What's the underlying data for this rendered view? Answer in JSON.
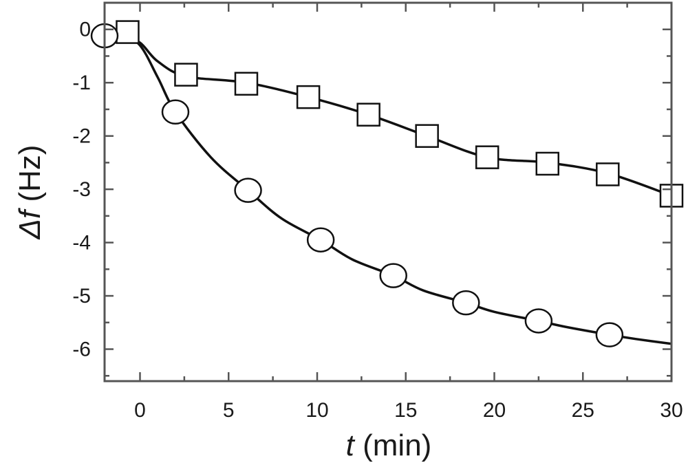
{
  "chart_data": {
    "type": "line",
    "x_axis": {
      "label_symbol": "t",
      "label_unit": "(min)",
      "range": [
        -2,
        30
      ],
      "ticks": [
        0,
        5,
        10,
        15,
        20,
        25,
        30
      ],
      "tick_labels": [
        "0",
        "5",
        "10",
        "15",
        "20",
        "25",
        "30"
      ]
    },
    "y_axis": {
      "label_symbol": "Δf",
      "label_unit": "(Hz)",
      "range": [
        -6.6,
        0.5
      ],
      "ticks": [
        0,
        -1,
        -2,
        -3,
        -4,
        -5,
        -6
      ],
      "tick_labels": [
        "0",
        "-1",
        "-2",
        "-3",
        "-4",
        "-5",
        "-6"
      ]
    },
    "grid": false,
    "legend": "none",
    "series": [
      {
        "marker": "square",
        "x": [
          -0.7,
          2.6,
          6.0,
          9.5,
          12.9,
          16.2,
          19.6,
          23.0,
          26.4,
          30.0
        ],
        "y": [
          -0.05,
          -0.85,
          -1.02,
          -1.27,
          -1.6,
          -2.0,
          -2.4,
          -2.52,
          -2.72,
          -3.12
        ],
        "curve_x": [
          -2,
          -1,
          0,
          1,
          2.6,
          6.0,
          9.5,
          12.9,
          16.2,
          19.6,
          23.0,
          26.4,
          30.0
        ],
        "curve_y": [
          -0.1,
          -0.12,
          -0.25,
          -0.6,
          -0.88,
          -1.0,
          -1.27,
          -1.6,
          -2.0,
          -2.4,
          -2.5,
          -2.7,
          -3.12
        ]
      },
      {
        "marker": "circle",
        "x": [
          -2,
          2.0,
          6.1,
          10.2,
          14.3,
          18.4,
          22.5,
          26.5
        ],
        "y": [
          -0.12,
          -1.55,
          -3.02,
          -3.95,
          -4.62,
          -5.13,
          -5.47,
          -5.73
        ],
        "curve_x": [
          -2,
          -1,
          0,
          1,
          2.0,
          4.0,
          6.1,
          8.0,
          10.2,
          12.0,
          14.3,
          16.0,
          18.4,
          20.0,
          22.5,
          24.0,
          26.5,
          28.0,
          30.0
        ],
        "curve_y": [
          -0.1,
          -0.12,
          -0.3,
          -0.9,
          -1.55,
          -2.4,
          -3.02,
          -3.55,
          -3.95,
          -4.32,
          -4.62,
          -4.9,
          -5.13,
          -5.3,
          -5.47,
          -5.58,
          -5.73,
          -5.81,
          -5.9
        ]
      }
    ]
  }
}
